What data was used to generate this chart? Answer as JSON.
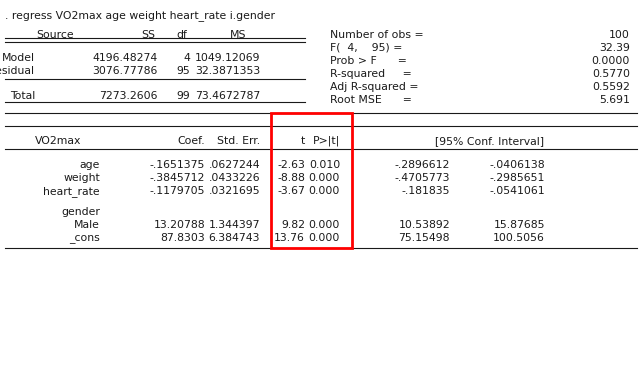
{
  "command": ". regress VO2max age weight heart_rate i.gender",
  "bg_color": "#ffffff",
  "text_color": "#1a1a1a",
  "font_family": "Courier New",
  "top_table_rows": [
    [
      "Model",
      "4196.48274",
      "4",
      "1049.12069"
    ],
    [
      "Residual",
      "3076.77786",
      "95",
      "32.3871353"
    ],
    [
      "Total",
      "7273.2606",
      "99",
      "73.4672787"
    ]
  ],
  "stats": [
    [
      "Number of obs =",
      "100"
    ],
    [
      "F(  4,    95) =",
      "32.39"
    ],
    [
      "Prob > F      =",
      "0.0000"
    ],
    [
      "R-squared     =",
      "0.5770"
    ],
    [
      "Adj R-squared =",
      "0.5592"
    ],
    [
      "Root MSE      =",
      "5.691"
    ]
  ],
  "bottom_rows": [
    [
      "age",
      "-.1651375",
      ".0627244",
      "-2.63",
      "0.010",
      "-.2896612",
      "-.0406138"
    ],
    [
      "weight",
      "-.3845712",
      ".0433226",
      "-8.88",
      "0.000",
      "-.4705773",
      "-.2985651"
    ],
    [
      "heart_rate",
      "-.1179705",
      ".0321695",
      "-3.67",
      "0.000",
      "-.181835",
      "-.0541061"
    ],
    [
      "gender",
      "",
      "",
      "",
      "",
      "",
      ""
    ],
    [
      "Male",
      "13.20788",
      "1.344397",
      "9.82",
      "0.000",
      "10.53892",
      "15.87685"
    ],
    [
      "_cons",
      "87.8303",
      "6.384743",
      "13.76",
      "0.000",
      "75.15498",
      "100.5056"
    ]
  ]
}
